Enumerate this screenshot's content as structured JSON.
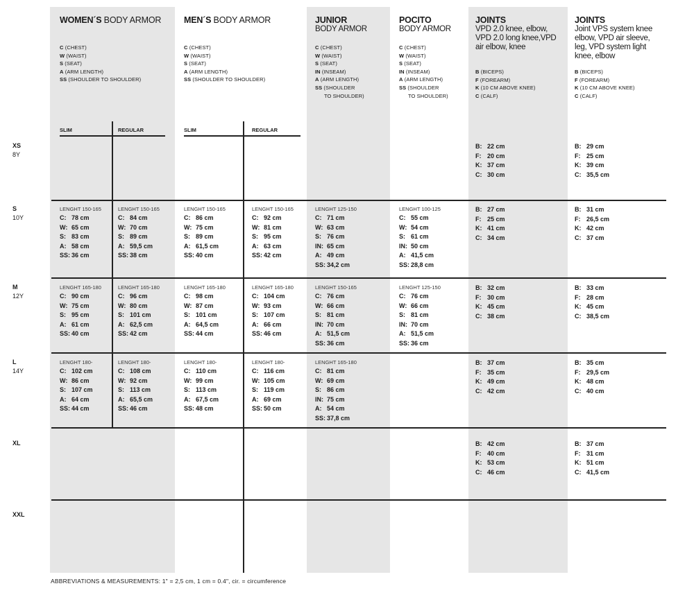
{
  "headers": {
    "women": {
      "bold": "WOMEN´S",
      "rest": " BODY ARMOR",
      "legend": [
        [
          "C",
          "(CHEST)"
        ],
        [
          "W",
          "(WAIST)"
        ],
        [
          "S",
          "(SEAT)"
        ],
        [
          "A",
          "(ARM LENGTH)"
        ],
        [
          "SS",
          "(SHOULDER TO SHOULDER)"
        ]
      ],
      "slim": "SLIM",
      "regular": "REGULAR"
    },
    "men": {
      "bold": "MEN´S",
      "rest": " BODY ARMOR",
      "legend": [
        [
          "C",
          "(CHEST)"
        ],
        [
          "W",
          "(WAIST)"
        ],
        [
          "S",
          "(SEAT)"
        ],
        [
          "A",
          "(ARM LENGTH)"
        ],
        [
          "SS",
          "(SHOULDER TO SHOULDER)"
        ]
      ],
      "slim": "SLIM",
      "regular": "REGULAR"
    },
    "junior": {
      "bold": "JUNIOR",
      "sub": "BODY ARMOR",
      "legend": [
        [
          "C",
          "(CHEST)"
        ],
        [
          "W",
          "(WAIST)"
        ],
        [
          "S",
          "(SEAT)"
        ],
        [
          "IN",
          "(INSEAM)"
        ],
        [
          "A",
          "(ARM LENGTH)"
        ],
        [
          "SS",
          "(SHOULDER"
        ],
        [
          "",
          "TO SHOULDER)"
        ]
      ]
    },
    "pocito": {
      "bold": "POCITO",
      "sub": "BODY ARMOR",
      "legend": [
        [
          "C",
          "(CHEST)"
        ],
        [
          "W",
          "(WAIST)"
        ],
        [
          "S",
          "(SEAT)"
        ],
        [
          "IN",
          "(INSEAM)"
        ],
        [
          "A",
          "(ARM LENGTH)"
        ],
        [
          "SS",
          "(SHOULDER"
        ],
        [
          "",
          "TO SHOULDER)"
        ]
      ]
    },
    "joints1": {
      "bold": "JOINTS",
      "sub": "VPD 2.0 knee, elbow, VPD 2.0 long knee,VPD air elbow, knee",
      "legend": [
        [
          "B",
          "(BICEPS)"
        ],
        [
          "F",
          "(FOREARM)"
        ],
        [
          "K",
          "(10 CM ABOVE KNEE)"
        ],
        [
          "C",
          "(CALF)"
        ]
      ]
    },
    "joints2": {
      "bold": "JOINTS",
      "sub": "Joint VPS system knee elbow, VPD  air sleeve, leg, VPD system light knee, elbow",
      "legend": [
        [
          "B",
          "(BICEPS)"
        ],
        [
          "F",
          "(FOREARM)"
        ],
        [
          "K",
          "(10 CM ABOVE KNEE)"
        ],
        [
          "C",
          "(CALF)"
        ]
      ]
    }
  },
  "rows": [
    {
      "size": "XS",
      "age": "8Y",
      "cells": {
        "joints1": {
          "items": [
            [
              "B:",
              "22 cm"
            ],
            [
              "F:",
              "20 cm"
            ],
            [
              "K:",
              "37 cm"
            ],
            [
              "C:",
              "30 cm"
            ]
          ]
        },
        "joints2": {
          "items": [
            [
              "B:",
              "29 cm"
            ],
            [
              "F:",
              "25 cm"
            ],
            [
              "K:",
              "39 cm"
            ],
            [
              "C:",
              "35,5 cm"
            ]
          ]
        }
      }
    },
    {
      "size": "S",
      "age": "10Y",
      "cells": {
        "women_slim": {
          "len": "LENGHT 150-165",
          "items": [
            [
              "C:",
              "78 cm"
            ],
            [
              "W:",
              "65 cm"
            ],
            [
              "S:",
              "83 cm"
            ],
            [
              "A:",
              "58 cm"
            ],
            [
              "SS:",
              "36 cm"
            ]
          ]
        },
        "women_regular": {
          "len": "LENGHT 150-165",
          "items": [
            [
              "C:",
              "84 cm"
            ],
            [
              "W:",
              "70 cm"
            ],
            [
              "S:",
              "89 cm"
            ],
            [
              "A:",
              "59,5 cm"
            ],
            [
              "SS:",
              "38 cm"
            ]
          ]
        },
        "men_slim": {
          "len": "LENGHT 150-165",
          "items": [
            [
              "C:",
              "86 cm"
            ],
            [
              "W:",
              "75 cm"
            ],
            [
              "S:",
              "89 cm"
            ],
            [
              "A:",
              "61,5 cm"
            ],
            [
              "SS:",
              "40 cm"
            ]
          ]
        },
        "men_regular": {
          "len": "LENGHT 150-165",
          "items": [
            [
              "C:",
              "92 cm"
            ],
            [
              "W:",
              "81 cm"
            ],
            [
              "S:",
              "95 cm"
            ],
            [
              "A:",
              "63 cm"
            ],
            [
              "SS:",
              "42 cm"
            ]
          ]
        },
        "junior": {
          "len": "LENGHT 125-150",
          "items": [
            [
              "C:",
              "71 cm"
            ],
            [
              "W:",
              "63 cm"
            ],
            [
              "S:",
              "76 cm"
            ],
            [
              "IN:",
              "65 cm"
            ],
            [
              "A:",
              "49 cm"
            ],
            [
              "SS:",
              "34,2 cm"
            ]
          ]
        },
        "pocito": {
          "len": "LENGHT 100-125",
          "items": [
            [
              "C:",
              "55 cm"
            ],
            [
              "W:",
              "54 cm"
            ],
            [
              "S:",
              "61 cm"
            ],
            [
              "IN:",
              "50 cm"
            ],
            [
              "A:",
              "41,5 cm"
            ],
            [
              "SS:",
              "28,8 cm"
            ]
          ]
        },
        "joints1": {
          "items": [
            [
              "B:",
              "27 cm"
            ],
            [
              "F:",
              "25 cm"
            ],
            [
              "K:",
              "41 cm"
            ],
            [
              "C:",
              "34 cm"
            ]
          ]
        },
        "joints2": {
          "items": [
            [
              "B:",
              "31 cm"
            ],
            [
              "F:",
              "26,5 cm"
            ],
            [
              "K:",
              "42 cm"
            ],
            [
              "C:",
              "37 cm"
            ]
          ]
        }
      }
    },
    {
      "size": "M",
      "age": "12Y",
      "cells": {
        "women_slim": {
          "len": "LENGHT 165-180",
          "items": [
            [
              "C:",
              "90 cm"
            ],
            [
              "W:",
              "75 cm"
            ],
            [
              "S:",
              "95 cm"
            ],
            [
              "A:",
              "61 cm"
            ],
            [
              "SS:",
              "40 cm"
            ]
          ]
        },
        "women_regular": {
          "len": "LENGHT 165-180",
          "items": [
            [
              "C:",
              "96 cm"
            ],
            [
              "W:",
              "80 cm"
            ],
            [
              "S:",
              "101 cm"
            ],
            [
              "A:",
              "62,5 cm"
            ],
            [
              "SS:",
              "42 cm"
            ]
          ]
        },
        "men_slim": {
          "len": "LENGHT 165-180",
          "items": [
            [
              "C:",
              "98 cm"
            ],
            [
              "W:",
              "87 cm"
            ],
            [
              "S:",
              "101 cm"
            ],
            [
              "A:",
              "64,5 cm"
            ],
            [
              "SS:",
              "44 cm"
            ]
          ]
        },
        "men_regular": {
          "len": "LENGHT 165-180",
          "items": [
            [
              "C:",
              "104 cm"
            ],
            [
              "W:",
              "93 cm"
            ],
            [
              "S:",
              "107 cm"
            ],
            [
              "A:",
              "66 cm"
            ],
            [
              "SS:",
              "46 cm"
            ]
          ]
        },
        "junior": {
          "len": "LENGHT 150-165",
          "items": [
            [
              "C:",
              "76 cm"
            ],
            [
              "W:",
              "66 cm"
            ],
            [
              "S:",
              "81 cm"
            ],
            [
              "IN:",
              "70 cm"
            ],
            [
              "A:",
              "51,5 cm"
            ],
            [
              "SS:",
              "36 cm"
            ]
          ]
        },
        "pocito": {
          "len": "LENGHT 125-150",
          "items": [
            [
              "C:",
              "76 cm"
            ],
            [
              "W:",
              "66 cm"
            ],
            [
              "S:",
              "81 cm"
            ],
            [
              "IN:",
              "70 cm"
            ],
            [
              "A:",
              "51,5 cm"
            ],
            [
              "SS:",
              "36 cm"
            ]
          ]
        },
        "joints1": {
          "items": [
            [
              "B:",
              "32 cm"
            ],
            [
              "F:",
              "30 cm"
            ],
            [
              "K:",
              "45 cm"
            ],
            [
              "C:",
              "38 cm"
            ]
          ]
        },
        "joints2": {
          "items": [
            [
              "B:",
              "33 cm"
            ],
            [
              "F:",
              "28 cm"
            ],
            [
              "K:",
              "45 cm"
            ],
            [
              "C:",
              "38,5 cm"
            ]
          ]
        }
      }
    },
    {
      "size": "L",
      "age": "14Y",
      "cells": {
        "women_slim": {
          "len": "LENGHT 180-",
          "items": [
            [
              "C:",
              "102 cm"
            ],
            [
              "W:",
              "86 cm"
            ],
            [
              "S:",
              "107 cm"
            ],
            [
              "A:",
              "64 cm"
            ],
            [
              "SS:",
              "44 cm"
            ]
          ]
        },
        "women_regular": {
          "len": "LENGHT 180-",
          "items": [
            [
              "C:",
              "108 cm"
            ],
            [
              "W:",
              "92 cm"
            ],
            [
              "S:",
              "113 cm"
            ],
            [
              "A:",
              "65,5 cm"
            ],
            [
              "SS:",
              "46 cm"
            ]
          ]
        },
        "men_slim": {
          "len": "LENGHT 180-",
          "items": [
            [
              "C:",
              "110 cm"
            ],
            [
              "W:",
              "99 cm"
            ],
            [
              "S:",
              "113 cm"
            ],
            [
              "A:",
              "67,5 cm"
            ],
            [
              "SS:",
              "48 cm"
            ]
          ]
        },
        "men_regular": {
          "len": "LENGHT 180-",
          "items": [
            [
              "C:",
              "116 cm"
            ],
            [
              "W:",
              "105 cm"
            ],
            [
              "S:",
              "119 cm"
            ],
            [
              "A:",
              "69 cm"
            ],
            [
              "SS:",
              "50 cm"
            ]
          ]
        },
        "junior": {
          "len": "LENGHT 165-180",
          "items": [
            [
              "C:",
              "81 cm"
            ],
            [
              "W:",
              "69 cm"
            ],
            [
              "S:",
              "86 cm"
            ],
            [
              "IN:",
              "75 cm"
            ],
            [
              "A:",
              "54 cm"
            ],
            [
              "SS:",
              "37,8 cm"
            ]
          ]
        },
        "joints1": {
          "items": [
            [
              "B:",
              "37 cm"
            ],
            [
              "F:",
              "35 cm"
            ],
            [
              "K:",
              "49 cm"
            ],
            [
              "C:",
              "42 cm"
            ]
          ]
        },
        "joints2": {
          "items": [
            [
              "B:",
              "35 cm"
            ],
            [
              "F:",
              "29,5 cm"
            ],
            [
              "K:",
              "48 cm"
            ],
            [
              "C:",
              "40 cm"
            ]
          ]
        }
      }
    },
    {
      "size": "XL",
      "age": "",
      "cells": {
        "joints1": {
          "items": [
            [
              "B:",
              "42 cm"
            ],
            [
              "F:",
              "40 cm"
            ],
            [
              "K:",
              "53 cm"
            ],
            [
              "C:",
              "46 cm"
            ]
          ]
        },
        "joints2": {
          "items": [
            [
              "B:",
              "37 cm"
            ],
            [
              "F:",
              "31 cm"
            ],
            [
              "K:",
              "51 cm"
            ],
            [
              "C:",
              "41,5 cm"
            ]
          ]
        }
      }
    },
    {
      "size": "XXL",
      "age": "",
      "cells": {}
    }
  ],
  "footer": "ABBREVIATIONS & MEASUREMENTS: 1\" = 2,5 cm, 1 cm = 0.4\", cir. = circumference",
  "colors": {
    "band": "#e6e6e6",
    "line": "#222222",
    "text": "#1a1a1a"
  }
}
